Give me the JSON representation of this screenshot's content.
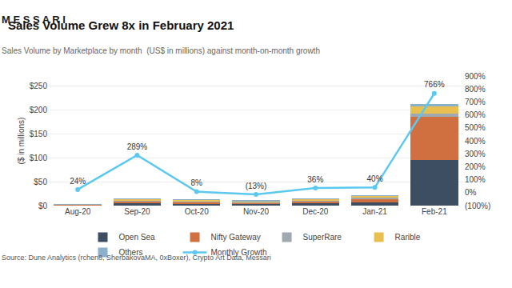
{
  "chart_data": {
    "type": "bar",
    "stacked": true,
    "title": "Sales Volume Grew 8x in February 2021",
    "subtitle": "Sales Volume by Marketplace by month  (US$ in millions) against month-on-month growth",
    "annotations": [
      "M E S S A R I",
      "Source: Dune Analytics (rchen8, SherbakovaMA, 0xBoxer), Crypto Art Data, Messari"
    ],
    "ylabel": "($ in millions)",
    "categories": [
      "Aug-20",
      "Sep-20",
      "Oct-20",
      "Nov-20",
      "Dec-20",
      "Jan-21",
      "Feb-21"
    ],
    "series": [
      {
        "name": "Open Sea",
        "color": "#3d4e63",
        "values": [
          1.5,
          5.0,
          4.5,
          3.5,
          4.5,
          6.0,
          95.0
        ]
      },
      {
        "name": "Nifty Gateway",
        "color": "#d07040",
        "values": [
          0.3,
          3.5,
          3.0,
          2.5,
          4.0,
          8.0,
          90.0
        ]
      },
      {
        "name": "SuperRare",
        "color": "#a0a8b0",
        "values": [
          0.3,
          1.2,
          1.0,
          0.8,
          1.2,
          2.0,
          7.0
        ]
      },
      {
        "name": "Rarible",
        "color": "#e8c050",
        "values": [
          0.5,
          4.5,
          4.0,
          3.0,
          4.0,
          4.5,
          15.0
        ]
      },
      {
        "name": "Others",
        "color": "#8ab0cc",
        "values": [
          0.2,
          0.8,
          0.5,
          0.4,
          0.6,
          1.0,
          4.0
        ]
      },
      {
        "name": "Monthly Growth",
        "type": "line",
        "axis": "y2",
        "color": "#5bc8f0",
        "marker": "circle",
        "data_labels": true,
        "values": [
          24,
          289,
          8,
          -13,
          36,
          40,
          766
        ],
        "value_labels": [
          "24%",
          "289%",
          "8%",
          "(13%)",
          "36%",
          "40%",
          "766%"
        ]
      }
    ],
    "ylim": [
      0,
      270
    ],
    "yticks": [
      {
        "value": 0,
        "label": "$0"
      },
      {
        "value": 50,
        "label": "$50"
      },
      {
        "value": 100,
        "label": "$100"
      },
      {
        "value": 150,
        "label": "$150"
      },
      {
        "value": 200,
        "label": "$200"
      },
      {
        "value": 250,
        "label": "$250"
      }
    ],
    "y2lim": [
      -100,
      900
    ],
    "y2ticks": [
      {
        "value": -100,
        "label": "(100%)"
      },
      {
        "value": 0,
        "label": "0%"
      },
      {
        "value": 100,
        "label": "100%"
      },
      {
        "value": 200,
        "label": "200%"
      },
      {
        "value": 300,
        "label": "300%"
      },
      {
        "value": 400,
        "label": "400%"
      },
      {
        "value": 500,
        "label": "500%"
      },
      {
        "value": 600,
        "label": "600%"
      },
      {
        "value": 700,
        "label": "700%"
      },
      {
        "value": 800,
        "label": "800%"
      },
      {
        "value": 900,
        "label": "900%"
      }
    ],
    "grid": true,
    "legend": "bottom"
  }
}
